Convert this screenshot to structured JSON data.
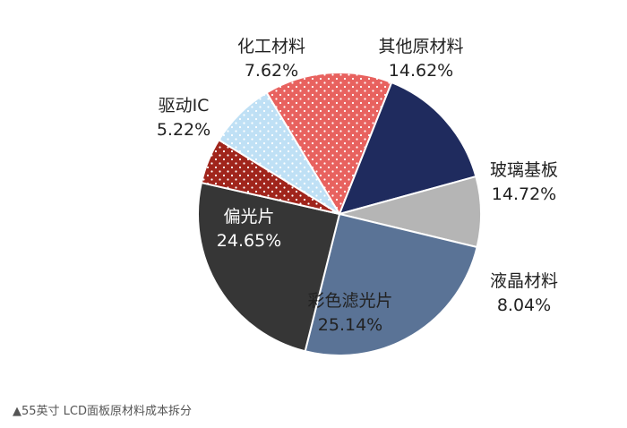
{
  "caption": "▲55英寸 LCD面板原材料成本拆分",
  "chart_data": {
    "type": "pie",
    "title": "",
    "start_angle_deg": 329,
    "direction": "clockwise",
    "slices": [
      {
        "label": "其他原材料",
        "value": 14.62,
        "value_text": "14.62%",
        "color": "#e8625f",
        "pattern": "dots-white"
      },
      {
        "label": "玻璃基板",
        "value": 14.72,
        "value_text": "14.72%",
        "color": "#1f2b5e",
        "pattern": "none"
      },
      {
        "label": "液晶材料",
        "value": 8.04,
        "value_text": "8.04%",
        "color": "#b5b5b5",
        "pattern": "none"
      },
      {
        "label": "彩色滤光片",
        "value": 25.14,
        "value_text": "25.14%",
        "color": "#5a7396",
        "pattern": "none"
      },
      {
        "label": "偏光片",
        "value": 24.65,
        "value_text": "24.65%",
        "color": "#363636",
        "pattern": "none"
      },
      {
        "label": "驱动IC",
        "value": 5.22,
        "value_text": "5.22%",
        "color": "#a0251c",
        "pattern": "dots-white"
      },
      {
        "label": "化工材料",
        "value": 7.62,
        "value_text": "7.62%",
        "color": "#bfe0f5",
        "pattern": "dots-white"
      }
    ]
  }
}
